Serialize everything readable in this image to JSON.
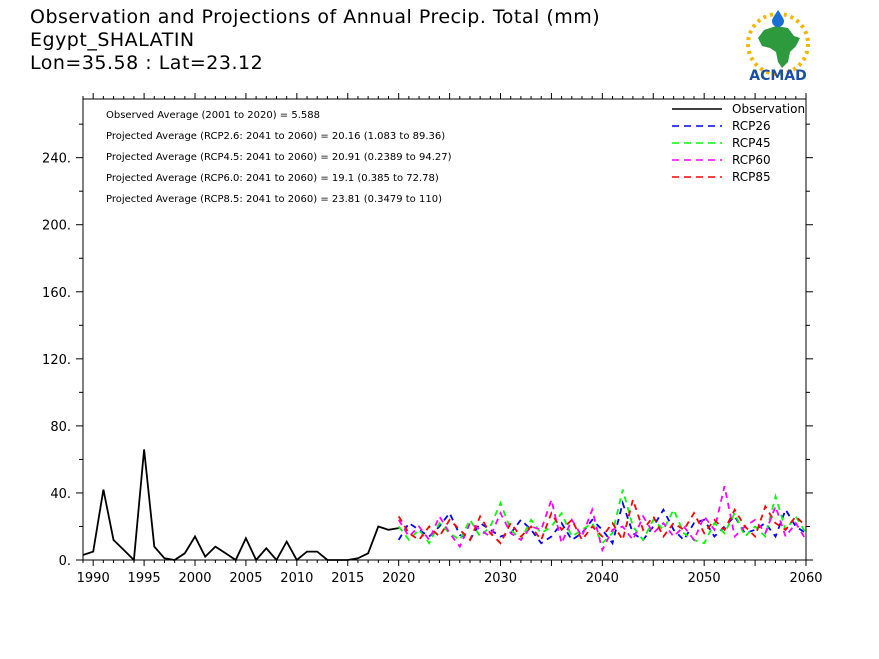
{
  "header": {
    "title": "Observation and Projections of Annual Precip. Total (mm)",
    "station": "Egypt_SHALATIN",
    "coords": "Lon=35.58 : Lat=23.12"
  },
  "logo": {
    "text": "ACMAD",
    "icon": "acmad-africa-logo"
  },
  "stats": [
    "Observed Average (2001 to 2020) = 5.588",
    "Projected Average (RCP2.6: 2041 to 2060) = 20.16 (1.083 to 89.36)",
    "Projected Average (RCP4.5: 2041 to 2060) = 20.91 (0.2389 to 94.27)",
    "Projected Average (RCP6.0: 2041 to 2060) = 19.1 (0.385 to 72.78)",
    "Projected Average (RCP8.5: 2041 to 2060) = 23.81 (0.3479 to 110)"
  ],
  "chart_data": {
    "type": "line",
    "xlim": [
      1989,
      2060
    ],
    "ylim": [
      0,
      275
    ],
    "x_ticks": [
      1990,
      1995,
      2000,
      2005,
      2010,
      2015,
      2020,
      2030,
      2040,
      2050,
      2060
    ],
    "x_tick_labels": [
      "1990",
      "1995",
      "2000",
      "2005",
      "2010",
      "2015",
      "2020",
      "2030",
      "2040",
      "2050",
      "2060"
    ],
    "y_ticks": [
      0,
      40,
      80,
      120,
      160,
      200,
      240
    ],
    "y_tick_labels": [
      "0.",
      "40.",
      "80.",
      "120.",
      "160.",
      "200.",
      "240."
    ],
    "legend_position": "top-right",
    "series": [
      {
        "name": "Observation",
        "color": "#000000",
        "dash": "solid",
        "x": [
          1989,
          1990,
          1991,
          1992,
          1993,
          1994,
          1995,
          1996,
          1997,
          1998,
          1999,
          2000,
          2001,
          2002,
          2003,
          2004,
          2005,
          2006,
          2007,
          2008,
          2009,
          2010,
          2011,
          2012,
          2013,
          2014,
          2015,
          2016,
          2017,
          2018,
          2019,
          2020
        ],
        "values": [
          3,
          5,
          42,
          12,
          6,
          0,
          66,
          8,
          1,
          0,
          4,
          14,
          2,
          8,
          4,
          0,
          13,
          0,
          7,
          0,
          11,
          0,
          5,
          5,
          0,
          0,
          0,
          1,
          4,
          20,
          18,
          19
        ]
      },
      {
        "name": "RCP26",
        "color": "#0000ff",
        "dash": "dashed",
        "x": [
          2020,
          2021,
          2022,
          2023,
          2024,
          2025,
          2026,
          2027,
          2028,
          2029,
          2030,
          2031,
          2032,
          2033,
          2034,
          2035,
          2036,
          2037,
          2038,
          2039,
          2040,
          2041,
          2042,
          2043,
          2044,
          2045,
          2046,
          2047,
          2048,
          2049,
          2050,
          2051,
          2052,
          2053,
          2054,
          2055,
          2056,
          2057,
          2058,
          2059,
          2060
        ],
        "values": [
          12,
          22,
          18,
          14,
          20,
          28,
          15,
          12,
          22,
          18,
          14,
          16,
          24,
          18,
          10,
          14,
          22,
          12,
          16,
          24,
          18,
          10,
          34,
          16,
          12,
          20,
          30,
          18,
          12,
          22,
          24,
          14,
          20,
          26,
          16,
          18,
          22,
          14,
          30,
          20,
          16
        ]
      },
      {
        "name": "RCP45",
        "color": "#00ff00",
        "dash": "dashed",
        "x": [
          2020,
          2021,
          2022,
          2023,
          2024,
          2025,
          2026,
          2027,
          2028,
          2029,
          2030,
          2031,
          2032,
          2033,
          2034,
          2035,
          2036,
          2037,
          2038,
          2039,
          2040,
          2041,
          2042,
          2043,
          2044,
          2045,
          2046,
          2047,
          2048,
          2049,
          2050,
          2051,
          2052,
          2053,
          2054,
          2055,
          2056,
          2057,
          2058,
          2059,
          2060
        ],
        "values": [
          20,
          12,
          18,
          10,
          22,
          16,
          12,
          24,
          14,
          20,
          34,
          18,
          12,
          24,
          16,
          20,
          28,
          14,
          18,
          22,
          10,
          16,
          42,
          20,
          12,
          24,
          18,
          30,
          16,
          12,
          10,
          22,
          16,
          28,
          14,
          20,
          14,
          38,
          18,
          26,
          16
        ]
      },
      {
        "name": "RCP60",
        "color": "#ff00ff",
        "dash": "dashed",
        "x": [
          2020,
          2021,
          2022,
          2023,
          2024,
          2025,
          2026,
          2027,
          2028,
          2029,
          2030,
          2031,
          2032,
          2033,
          2034,
          2035,
          2036,
          2037,
          2038,
          2039,
          2040,
          2041,
          2042,
          2043,
          2044,
          2045,
          2046,
          2047,
          2048,
          2049,
          2050,
          2051,
          2052,
          2053,
          2054,
          2055,
          2056,
          2057,
          2058,
          2059,
          2060
        ],
        "values": [
          24,
          14,
          20,
          12,
          26,
          16,
          8,
          22,
          18,
          14,
          28,
          16,
          12,
          20,
          18,
          36,
          10,
          24,
          14,
          30,
          6,
          18,
          20,
          12,
          26,
          16,
          22,
          14,
          20,
          12,
          26,
          18,
          44,
          14,
          20,
          24,
          16,
          32,
          14,
          22,
          12
        ]
      },
      {
        "name": "RCP85",
        "color": "#ff0000",
        "dash": "dashed",
        "x": [
          2020,
          2021,
          2022,
          2023,
          2024,
          2025,
          2026,
          2027,
          2028,
          2029,
          2030,
          2031,
          2032,
          2033,
          2034,
          2035,
          2036,
          2037,
          2038,
          2039,
          2040,
          2041,
          2042,
          2043,
          2044,
          2045,
          2046,
          2047,
          2048,
          2049,
          2050,
          2051,
          2052,
          2053,
          2054,
          2055,
          2056,
          2057,
          2058,
          2059,
          2060
        ],
        "values": [
          26,
          16,
          12,
          20,
          14,
          24,
          18,
          12,
          26,
          16,
          10,
          22,
          14,
          20,
          12,
          28,
          18,
          24,
          12,
          20,
          14,
          22,
          12,
          36,
          18,
          26,
          14,
          22,
          18,
          28,
          16,
          24,
          18,
          30,
          20,
          14,
          32,
          22,
          18,
          26,
          20
        ]
      }
    ]
  }
}
